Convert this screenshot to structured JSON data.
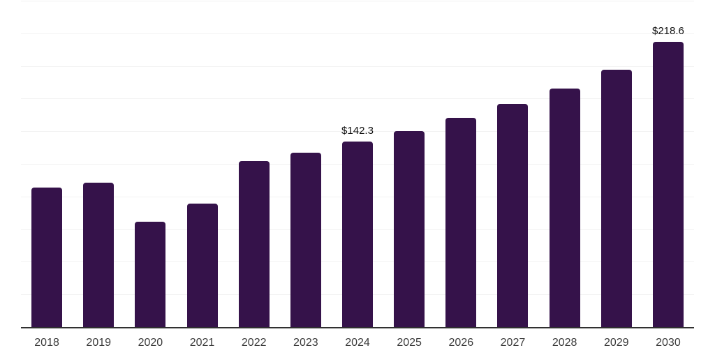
{
  "chart_data": {
    "type": "bar",
    "title": "",
    "xlabel": "",
    "ylabel": "",
    "categories": [
      "2018",
      "2019",
      "2020",
      "2021",
      "2022",
      "2023",
      "2024",
      "2025",
      "2026",
      "2027",
      "2028",
      "2029",
      "2030"
    ],
    "values": [
      106.6,
      110.4,
      80.5,
      94.3,
      126.9,
      133.4,
      142.3,
      150.3,
      160.4,
      171.1,
      182.9,
      197.2,
      218.6
    ],
    "data_labels": [
      {
        "category": "2024",
        "label": "$142.3"
      },
      {
        "category": "2030",
        "label": "$218.6"
      }
    ],
    "ylim": [
      0,
      250
    ],
    "grid_step": 25,
    "grid": "horizontal-only",
    "legend": "none",
    "y_axis_tick_labels": "none",
    "colors": {
      "bar": "#35124a",
      "gridline": "#f2f2f2",
      "axis_line": "#303030",
      "tick_label": "#3b3b3b",
      "data_label": "#111111",
      "background": "#ffffff"
    }
  }
}
